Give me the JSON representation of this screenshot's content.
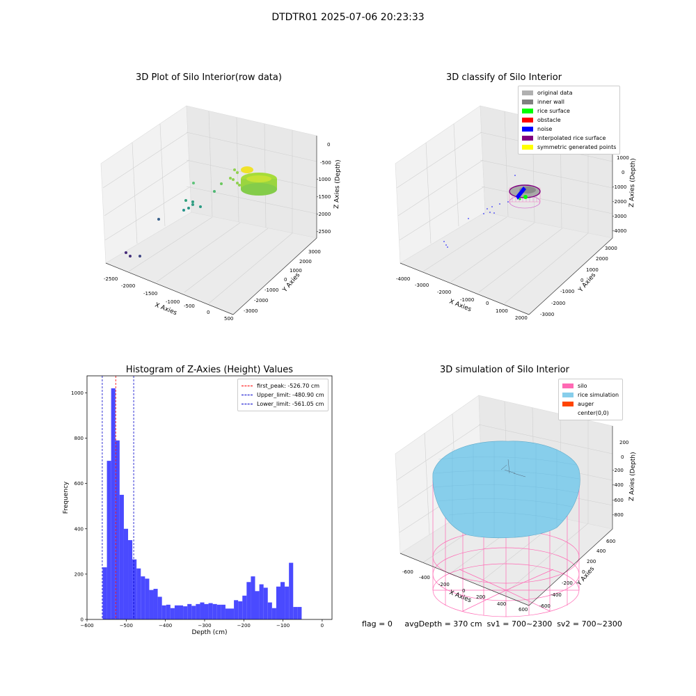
{
  "suptitle": "DTDTR01 2025-07-06 20:23:33",
  "footer": "flag = 0     avgDepth = 370 cm  sv1 = 700~2300  sv2 = 700~2300",
  "colors": {
    "hist_bar": "#4a4aff",
    "peak_line": "#ff0000",
    "limit_line": "#0000cc",
    "silo": "#ff69b4",
    "rice": "#87ceeb",
    "auger": "#ff4500"
  },
  "chart_data": [
    {
      "id": "raw3d",
      "type": "scatter",
      "title": "3D Plot of Silo Interior(row data)",
      "xlabel": "X Axies",
      "ylabel": "Y Axies",
      "zlabel": "Z Axies (Depth)",
      "xticks": [
        "-2500",
        "-2000",
        "-1500",
        "-1000",
        "-500",
        "0",
        "500"
      ],
      "yticks": [
        "-3000",
        "-2000",
        "-1000",
        "0",
        "1000",
        "2000",
        "3000"
      ],
      "zticks": [
        "-2500",
        "-2000",
        "-1500",
        "-1000",
        "-500",
        "0"
      ],
      "xlim": [
        -2500,
        500
      ],
      "ylim": [
        -3000,
        3000
      ],
      "zlim": [
        -2500,
        0
      ]
    },
    {
      "id": "classify3d",
      "type": "scatter",
      "title": "3D classify of Silo Interior",
      "xlabel": "X Axies",
      "ylabel": "Y Axies",
      "zlabel": "Z Axies (Depth)",
      "xticks": [
        "-4000",
        "-3000",
        "-2000",
        "-1000",
        "0",
        "1000",
        "2000"
      ],
      "yticks": [
        "-3000",
        "-2000",
        "-1000",
        "0",
        "1000",
        "2000",
        "3000"
      ],
      "zticks": [
        "-4000",
        "-3000",
        "-2000",
        "-1000",
        "0",
        "1000"
      ],
      "legend": [
        {
          "label": "original data",
          "color": "#b0b0b0"
        },
        {
          "label": "inner wall",
          "color": "#808080"
        },
        {
          "label": "rice surface",
          "color": "#00ff00"
        },
        {
          "label": "obstacle",
          "color": "#ff0000"
        },
        {
          "label": "noise",
          "color": "#0000ff"
        },
        {
          "label": "interpolated rice surface",
          "color": "#800080"
        },
        {
          "label": "symmetric generated points",
          "color": "#ffff00"
        }
      ],
      "legend_loc": "top-right"
    },
    {
      "id": "histogram",
      "type": "bar",
      "title": "Histogram of Z-Axies (Height) Values",
      "xlabel": "Depth (cm)",
      "ylabel": "Frequency",
      "xlim": [
        -600,
        25
      ],
      "ylim": [
        0,
        1075
      ],
      "xticks": [
        -600,
        -500,
        -400,
        -300,
        -200,
        -100,
        0
      ],
      "yticks": [
        0,
        200,
        400,
        600,
        800,
        1000
      ],
      "bin_start": -560,
      "bin_width": 10.8,
      "values": [
        230,
        700,
        1020,
        790,
        550,
        400,
        350,
        265,
        225,
        190,
        180,
        130,
        135,
        100,
        62,
        65,
        50,
        62,
        62,
        58,
        68,
        60,
        68,
        75,
        68,
        72,
        68,
        65,
        65,
        48,
        48,
        85,
        80,
        105,
        165,
        190,
        125,
        155,
        140,
        75,
        50,
        145,
        165,
        145,
        250,
        55,
        55
      ],
      "lines": [
        {
          "label": "first_peak: -526.70 cm",
          "value": -526.7,
          "kind": "peak"
        },
        {
          "label": "Upper_limit: -480.90 cm",
          "value": -480.9,
          "kind": "limit"
        },
        {
          "label": "Lower_limit: -561.05 cm",
          "value": -561.05,
          "kind": "limit"
        }
      ],
      "legend_loc": "top-right"
    },
    {
      "id": "sim3d",
      "type": "area",
      "title": "3D simulation of Silo Interior",
      "xlabel": "X Axies",
      "ylabel": "Y Axies",
      "zlabel": "Z Axies (Depth)",
      "xticks": [
        "-600",
        "-400",
        "-200",
        "0",
        "200",
        "400",
        "600"
      ],
      "yticks": [
        "-600",
        "-400",
        "-200",
        "0",
        "200",
        "400",
        "600"
      ],
      "zticks": [
        "-800",
        "-600",
        "-400",
        "-200",
        "0",
        "200"
      ],
      "legend": [
        {
          "label": "silo",
          "color": "#ff69b4"
        },
        {
          "label": "rice simulation",
          "color": "#87ceeb"
        },
        {
          "label": "auger",
          "color": "#ff4500"
        },
        {
          "label": "center(0,0)",
          "color": ""
        }
      ],
      "legend_loc": "top-right"
    }
  ]
}
